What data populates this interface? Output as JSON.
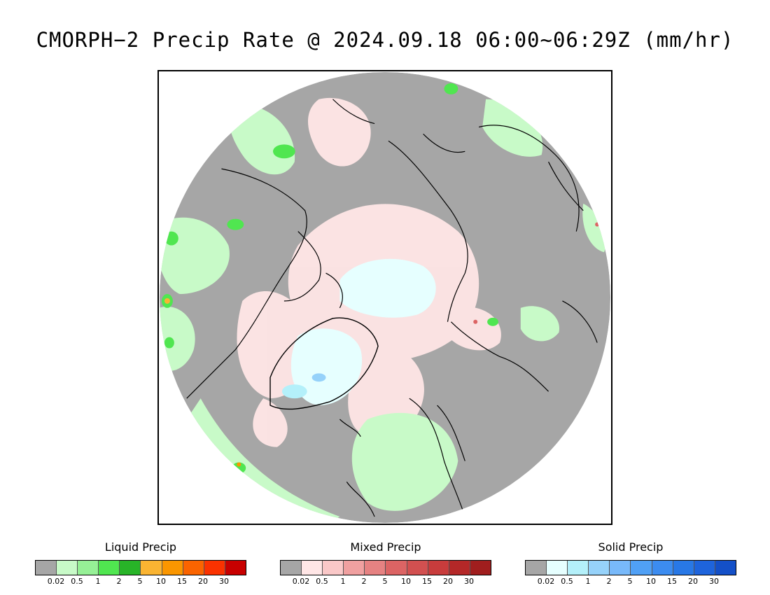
{
  "title": "CMORPH−2 Precip Rate @ 2024.09.18 06:00~06:29Z (mm/hr)",
  "map": {
    "region": "North polar stereographic view",
    "ocean_no_precip_color": "#a6a6a6",
    "coastline_color": "#000000"
  },
  "legends": [
    {
      "title": "Liquid Precip",
      "colors": [
        "#a6a6a6",
        "#c8fac8",
        "#96f096",
        "#50e650",
        "#28b428",
        "#fab432",
        "#fa9600",
        "#fa6400",
        "#fa3200",
        "#c80000"
      ],
      "ticks": [
        "0.02",
        "0.5",
        "1",
        "2",
        "5",
        "10",
        "15",
        "20",
        "30"
      ]
    },
    {
      "title": "Mixed Precip",
      "colors": [
        "#a6a6a6",
        "#ffe6e6",
        "#fac8c8",
        "#f0a0a0",
        "#e68282",
        "#dc6464",
        "#d25050",
        "#c83c3c",
        "#b42828",
        "#a01e1e"
      ],
      "ticks": [
        "0.02",
        "0.5",
        "1",
        "2",
        "5",
        "10",
        "15",
        "20",
        "30"
      ]
    },
    {
      "title": "Solid Precip",
      "colors": [
        "#a6a6a6",
        "#e6ffff",
        "#b4f0fa",
        "#96d2fa",
        "#78b9fa",
        "#50a0f5",
        "#3c8cf0",
        "#2878e6",
        "#1e64dc",
        "#1450c8"
      ],
      "ticks": [
        "0.02",
        "0.5",
        "1",
        "2",
        "5",
        "10",
        "15",
        "20",
        "30"
      ]
    }
  ]
}
